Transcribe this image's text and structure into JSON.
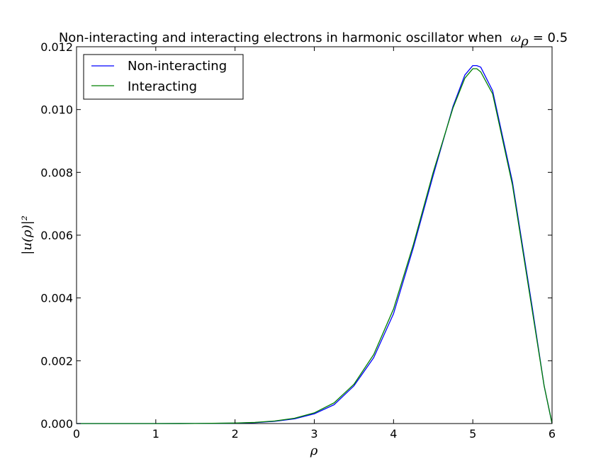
{
  "chart_data": {
    "type": "line",
    "title": "Non-interacting and interacting electrons in harmonic oscillator when",
    "title_suffix": "= 0.5",
    "title_math": "ω",
    "title_math_sub": "ρ",
    "xlabel": "ρ",
    "ylabel": "|u(ρ)|²",
    "xlim": [
      0,
      6
    ],
    "ylim": [
      0,
      0.012
    ],
    "xticks": [
      "0",
      "1",
      "2",
      "3",
      "4",
      "5",
      "6"
    ],
    "yticks": [
      "0.000",
      "0.002",
      "0.004",
      "0.006",
      "0.008",
      "0.010",
      "0.012"
    ],
    "grid": false,
    "legend_position": "top-left",
    "series": [
      {
        "name": "Non-interacting",
        "color": "#0000ff",
        "x": [
          0,
          0.5,
          1.0,
          1.5,
          2.0,
          2.25,
          2.5,
          2.75,
          3.0,
          3.25,
          3.5,
          3.75,
          4.0,
          4.25,
          4.5,
          4.75,
          4.9,
          5.0,
          5.05,
          5.1,
          5.25,
          5.5,
          5.75,
          5.9,
          6.0
        ],
        "y": [
          0,
          0,
          2e-07,
          2e-06,
          1.3e-05,
          3e-05,
          7e-05,
          0.00015,
          0.00031,
          0.0006,
          0.0012,
          0.0021,
          0.0035,
          0.0056,
          0.0079,
          0.0101,
          0.0111,
          0.0114,
          0.0114,
          0.01135,
          0.0106,
          0.0077,
          0.0037,
          0.0012,
          0
        ]
      },
      {
        "name": "Interacting",
        "color": "#008000",
        "x": [
          0,
          0.5,
          1.0,
          1.5,
          2.0,
          2.25,
          2.5,
          2.75,
          3.0,
          3.25,
          3.5,
          3.75,
          4.0,
          4.25,
          4.5,
          4.75,
          4.9,
          5.0,
          5.05,
          5.1,
          5.25,
          5.5,
          5.75,
          5.9,
          6.0
        ],
        "y": [
          0,
          0,
          3e-07,
          3e-06,
          1.6e-05,
          3.6e-05,
          8.2e-05,
          0.00017,
          0.00034,
          0.00066,
          0.00125,
          0.0022,
          0.00365,
          0.0057,
          0.008,
          0.01005,
          0.011,
          0.0113,
          0.0113,
          0.0112,
          0.0105,
          0.0076,
          0.0036,
          0.0012,
          0
        ]
      }
    ]
  }
}
